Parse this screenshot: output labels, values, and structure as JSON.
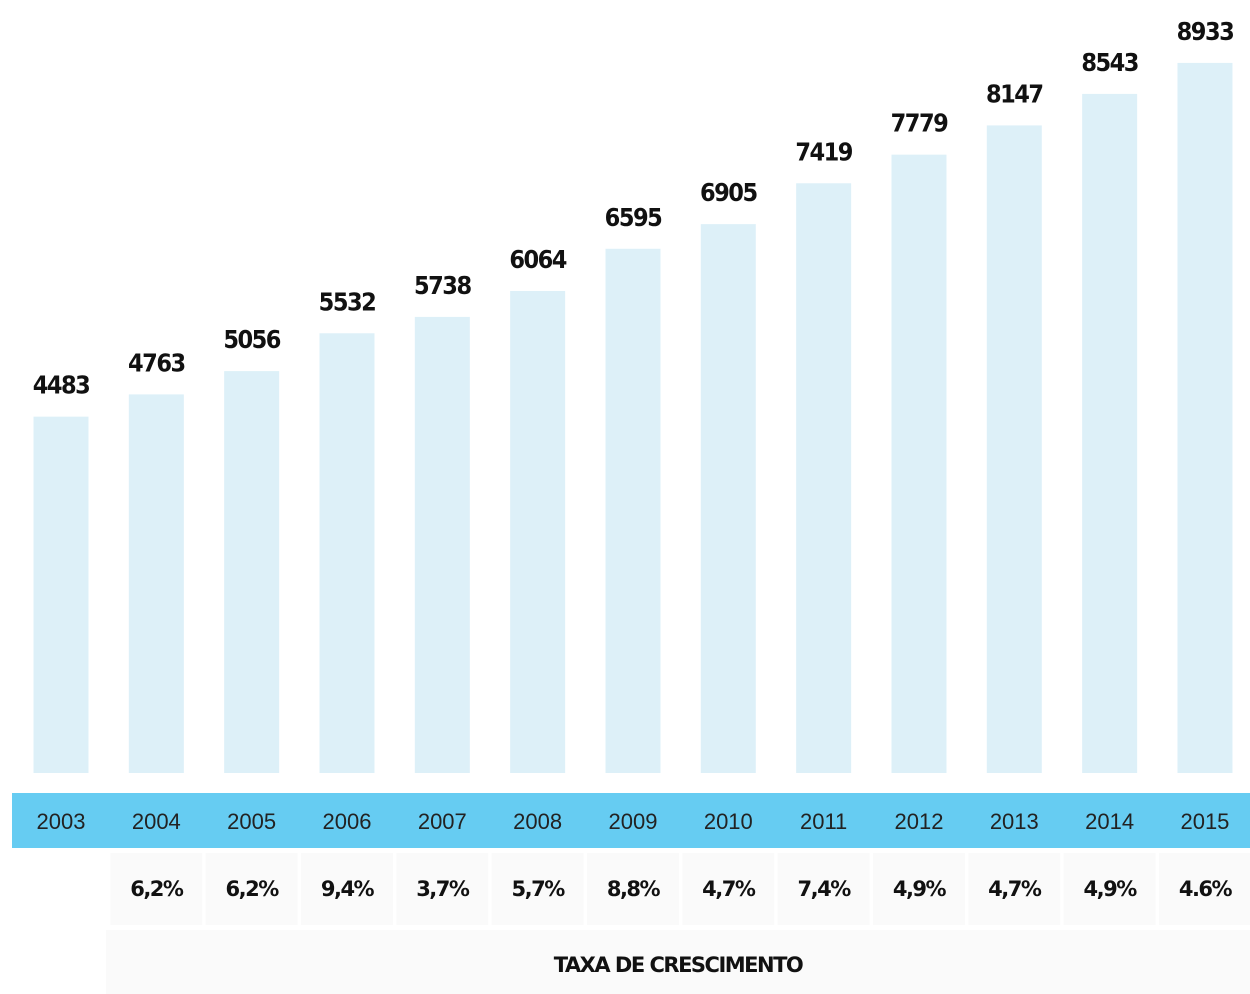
{
  "chart_data": {
    "type": "bar",
    "categories": [
      "2003",
      "2004",
      "2005",
      "2006",
      "2007",
      "2008",
      "2009",
      "2010",
      "2011",
      "2012",
      "2013",
      "2014",
      "2015"
    ],
    "values": [
      4483,
      4763,
      5056,
      5532,
      5738,
      6064,
      6595,
      6905,
      7419,
      7779,
      8147,
      8543,
      8933
    ],
    "color": "#ddf0f8",
    "band_color": "#66ccf2",
    "ylim": [
      0,
      9000
    ],
    "growth_rate": {
      "title": "TAXA DE CRESCIMENTO",
      "labels": [
        "6,2%",
        "6,2%",
        "9,4%",
        "3,7%",
        "5,7%",
        "8,8%",
        "4,7%",
        "7,4%",
        "4,9%",
        "4,7%",
        "4,9%",
        "4.6%"
      ]
    }
  }
}
